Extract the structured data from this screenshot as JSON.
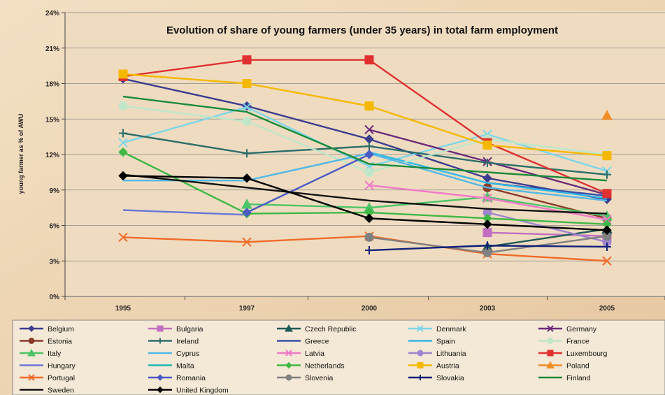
{
  "chart_data": {
    "type": "line",
    "title": "Evolution of share of young farmers (under 35 years) in total farm employment",
    "xlabel": "",
    "ylabel": "young farmer as % of AWU",
    "categories": [
      "1995",
      "1997",
      "2000",
      "2003",
      "2005"
    ],
    "yticks": [
      "0%",
      "3%",
      "6%",
      "9%",
      "12%",
      "15%",
      "18%",
      "21%",
      "24%"
    ],
    "ylim": [
      0,
      24
    ],
    "grid": true,
    "legend_position": "bottom",
    "series": [
      {
        "name": "Belgium",
        "color": "#3d3d8f",
        "marker": "diamond",
        "values": [
          18.4,
          16.1,
          13.3,
          10.0,
          8.2
        ]
      },
      {
        "name": "Bulgaria",
        "color": "#c26fc2",
        "marker": "square",
        "values": [
          null,
          null,
          null,
          5.4,
          5.1
        ]
      },
      {
        "name": "Czech Republic",
        "color": "#1d5a56",
        "marker": "triangle",
        "values": [
          null,
          null,
          null,
          4.2,
          5.7
        ]
      },
      {
        "name": "Denmark",
        "color": "#7ed6e8",
        "marker": "x",
        "values": [
          13.0,
          16.0,
          11.0,
          13.7,
          10.6
        ]
      },
      {
        "name": "Germany",
        "color": "#6b2a7a",
        "marker": "x",
        "values": [
          null,
          null,
          14.1,
          11.4,
          8.6
        ]
      },
      {
        "name": "Estonia",
        "color": "#8b3a2a",
        "marker": "circle",
        "values": [
          null,
          null,
          null,
          9.2,
          6.6
        ]
      },
      {
        "name": "Ireland",
        "color": "#2c6e6a",
        "marker": "plus",
        "values": [
          13.8,
          12.1,
          12.7,
          11.3,
          10.3
        ]
      },
      {
        "name": "Greece",
        "color": "#3a4fa8",
        "marker": "none",
        "values": [
          null,
          null,
          null,
          9.6,
          8.5
        ]
      },
      {
        "name": "Spain",
        "color": "#33b8e6",
        "marker": "none",
        "values": [
          null,
          null,
          12.2,
          9.6,
          8.3
        ]
      },
      {
        "name": "France",
        "color": "#bfe6c9",
        "marker": "circle",
        "values": [
          16.1,
          14.8,
          10.5,
          13.3,
          12.0
        ]
      },
      {
        "name": "Italy",
        "color": "#4dc468",
        "marker": "triangle",
        "values": [
          null,
          7.8,
          7.5,
          8.4,
          6.8
        ]
      },
      {
        "name": "Cyprus",
        "color": "#53b8e6",
        "marker": "none",
        "values": [
          9.8,
          9.8,
          12.1,
          9.2,
          8.1
        ]
      },
      {
        "name": "Latvia",
        "color": "#f07ac8",
        "marker": "x",
        "values": [
          null,
          null,
          9.4,
          8.3,
          6.5
        ]
      },
      {
        "name": "Lithuania",
        "color": "#9f85d0",
        "marker": "circle",
        "values": [
          null,
          null,
          null,
          7.1,
          4.6
        ]
      },
      {
        "name": "Luxembourg",
        "color": "#e03030",
        "marker": "square",
        "values": [
          18.6,
          20.0,
          20.0,
          13.0,
          8.7
        ]
      },
      {
        "name": "Hungary",
        "color": "#6a78d8",
        "marker": "none",
        "values": [
          7.3,
          6.9,
          null,
          null,
          null
        ]
      },
      {
        "name": "Malta",
        "color": "#1fb8b8",
        "marker": "none",
        "values": [
          null,
          null,
          null,
          null,
          null
        ]
      },
      {
        "name": "Netherlands",
        "color": "#3fb845",
        "marker": "diamond",
        "values": [
          12.2,
          7.0,
          7.1,
          6.6,
          6.1
        ]
      },
      {
        "name": "Austria",
        "color": "#f5b800",
        "marker": "square",
        "values": [
          18.8,
          18.0,
          16.1,
          12.8,
          11.9
        ]
      },
      {
        "name": "Poland",
        "color": "#f08c28",
        "marker": "triangle",
        "values": [
          null,
          null,
          null,
          null,
          15.3
        ]
      },
      {
        "name": "Portugal",
        "color": "#f06a28",
        "marker": "x",
        "values": [
          5.0,
          4.6,
          5.1,
          3.6,
          3.0
        ]
      },
      {
        "name": "Romania",
        "color": "#4a5bc4",
        "marker": "diamond",
        "values": [
          null,
          7.1,
          12.0,
          null,
          null
        ]
      },
      {
        "name": "Slovenia",
        "color": "#808080",
        "marker": "circle",
        "values": [
          null,
          null,
          5.0,
          3.7,
          5.1
        ]
      },
      {
        "name": "Slovakia",
        "color": "#102078",
        "marker": "plus",
        "values": [
          null,
          null,
          3.9,
          4.3,
          4.2
        ]
      },
      {
        "name": "Finland",
        "color": "#1a8a3a",
        "marker": "none",
        "values": [
          16.9,
          15.6,
          11.2,
          10.5,
          9.8
        ]
      },
      {
        "name": "Sweden",
        "color": "#111111",
        "marker": "none",
        "values": [
          10.3,
          9.2,
          8.1,
          7.4,
          7.0
        ]
      },
      {
        "name": "United Kingdom",
        "color": "#000000",
        "marker": "diamond",
        "values": [
          10.2,
          10.0,
          6.6,
          6.1,
          5.6
        ]
      }
    ]
  }
}
